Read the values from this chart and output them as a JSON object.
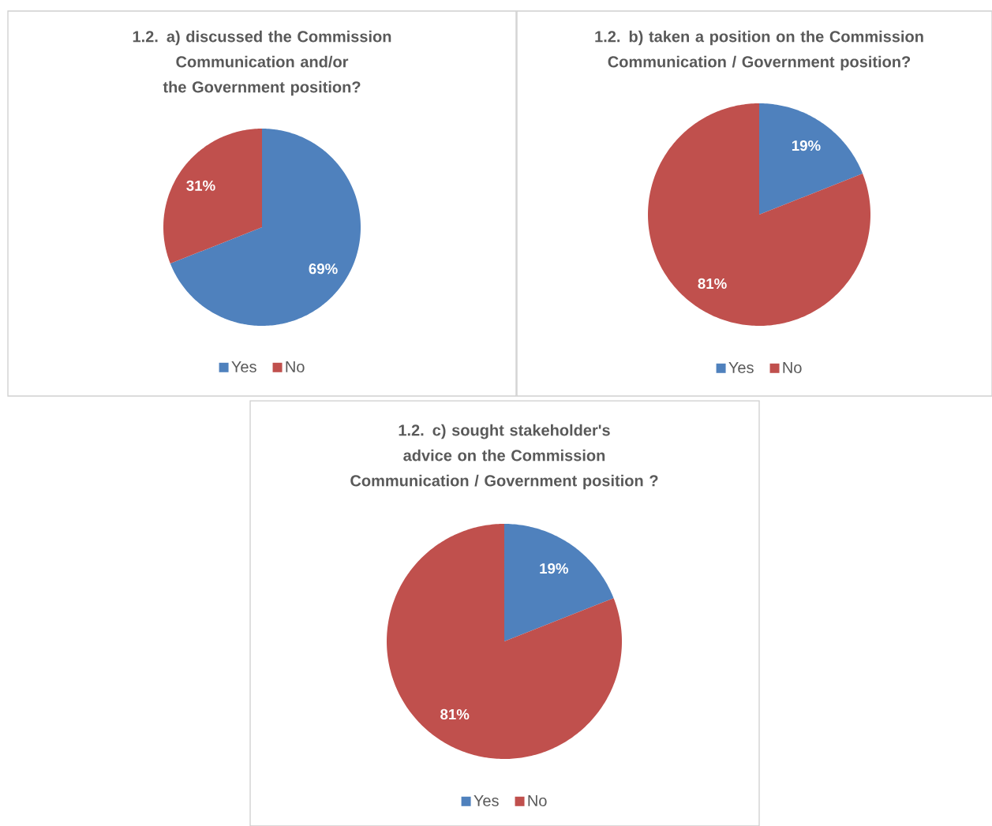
{
  "chart_data": [
    {
      "type": "pie",
      "title": "1.2. a) discussed the Commission Communication and/or the Government position?",
      "categories": [
        "Yes",
        "No"
      ],
      "values": [
        69,
        31
      ],
      "colors": [
        "#4f81bd",
        "#c0504d"
      ],
      "value_labels": [
        "69%",
        "31%"
      ],
      "legend": "bottom"
    },
    {
      "type": "pie",
      "title": "1.2. b) taken a position on the Commission Communication / Government position?",
      "categories": [
        "Yes",
        "No"
      ],
      "values": [
        19,
        81
      ],
      "colors": [
        "#4f81bd",
        "#c0504d"
      ],
      "value_labels": [
        "19%",
        "81%"
      ],
      "legend": "bottom"
    },
    {
      "type": "pie",
      "title": "1.2. c) sought stakeholder's advice on the Commission Communication / Government position ?",
      "categories": [
        "Yes",
        "No"
      ],
      "values": [
        19,
        81
      ],
      "colors": [
        "#4f81bd",
        "#c0504d"
      ],
      "value_labels": [
        "19%",
        "81%"
      ],
      "legend": "bottom"
    }
  ]
}
